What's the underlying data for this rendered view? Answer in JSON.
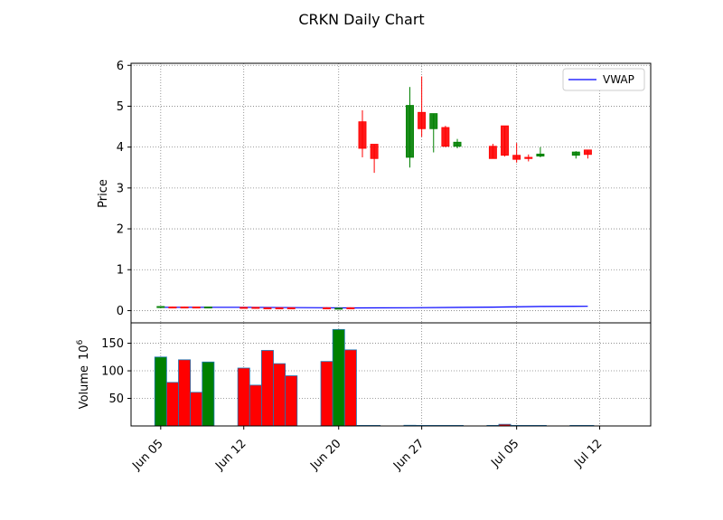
{
  "chart_data": {
    "type": "candlestick",
    "title": "CRKN Daily Chart",
    "price_panel": {
      "ylabel": "Price",
      "ylim": [
        -0.3,
        6.05
      ],
      "yticks": [
        0,
        1,
        2,
        3,
        4,
        5,
        6
      ],
      "legend": {
        "label": "VWAP",
        "placement": "top-right"
      },
      "grid": true
    },
    "volume_panel": {
      "ylabel": "Volume",
      "scale_label": "10",
      "scale_exponent": "6",
      "ylim": [
        0,
        187
      ],
      "yticks": [
        50,
        100,
        150
      ],
      "grid": true
    },
    "x_ticks": [
      {
        "label": "Jun 05",
        "day": 5
      },
      {
        "label": "Jun 12",
        "day": 12
      },
      {
        "label": "Jun 20",
        "day": 20
      },
      {
        "label": "Jun 27",
        "day": 27
      },
      {
        "label": "Jul 05",
        "day": 35
      },
      {
        "label": "Jul 12",
        "day": 42
      }
    ],
    "x_range": [
      2.5,
      46.3
    ],
    "colors": {
      "up": "#008000",
      "down": "#ff0000",
      "vwap": "#0000ff",
      "grid": "#808080"
    },
    "candles": [
      {
        "day": 5,
        "open": 0.08,
        "high": 0.1,
        "low": 0.06,
        "close": 0.1,
        "volume": 125
      },
      {
        "day": 6,
        "open": 0.09,
        "high": 0.1,
        "low": 0.07,
        "close": 0.08,
        "volume": 79
      },
      {
        "day": 7,
        "open": 0.09,
        "high": 0.1,
        "low": 0.07,
        "close": 0.08,
        "volume": 120
      },
      {
        "day": 8,
        "open": 0.09,
        "high": 0.09,
        "low": 0.07,
        "close": 0.08,
        "volume": 61
      },
      {
        "day": 9,
        "open": 0.08,
        "high": 0.09,
        "low": 0.07,
        "close": 0.09,
        "volume": 116
      },
      {
        "day": 12,
        "open": 0.08,
        "high": 0.09,
        "low": 0.07,
        "close": 0.07,
        "volume": 105
      },
      {
        "day": 13,
        "open": 0.08,
        "high": 0.08,
        "low": 0.05,
        "close": 0.06,
        "volume": 74
      },
      {
        "day": 14,
        "open": 0.07,
        "high": 0.08,
        "low": 0.05,
        "close": 0.06,
        "volume": 137
      },
      {
        "day": 15,
        "open": 0.07,
        "high": 0.08,
        "low": 0.05,
        "close": 0.06,
        "volume": 113
      },
      {
        "day": 16,
        "open": 0.07,
        "high": 0.08,
        "low": 0.05,
        "close": 0.06,
        "volume": 91
      },
      {
        "day": 19,
        "open": 0.07,
        "high": 0.08,
        "low": 0.04,
        "close": 0.05,
        "volume": 117
      },
      {
        "day": 20,
        "open": 0.05,
        "high": 0.07,
        "low": 0.04,
        "close": 0.06,
        "volume": 175
      },
      {
        "day": 21,
        "open": 0.07,
        "high": 0.08,
        "low": 0.04,
        "close": 0.05,
        "volume": 138
      },
      {
        "day": 22,
        "open": 4.62,
        "high": 4.9,
        "low": 3.75,
        "close": 3.97,
        "volume": 0.3
      },
      {
        "day": 23,
        "open": 4.07,
        "high": 4.07,
        "low": 3.37,
        "close": 3.72,
        "volume": 0.2
      },
      {
        "day": 26,
        "open": 3.75,
        "high": 5.47,
        "low": 3.5,
        "close": 5.02,
        "volume": 1.2
      },
      {
        "day": 27,
        "open": 4.85,
        "high": 5.73,
        "low": 4.25,
        "close": 4.45,
        "volume": 0.4
      },
      {
        "day": 28,
        "open": 4.45,
        "high": 4.82,
        "low": 3.87,
        "close": 4.82,
        "volume": 0.3
      },
      {
        "day": 29,
        "open": 4.48,
        "high": 4.52,
        "low": 4.0,
        "close": 4.02,
        "volume": 0.2
      },
      {
        "day": 30,
        "open": 4.02,
        "high": 4.2,
        "low": 3.97,
        "close": 4.12,
        "volume": 0.2
      },
      {
        "day": 33,
        "open": 4.02,
        "high": 4.08,
        "low": 3.72,
        "close": 3.72,
        "volume": 0.3
      },
      {
        "day": 34,
        "open": 4.52,
        "high": 4.52,
        "low": 3.77,
        "close": 3.8,
        "volume": 3
      },
      {
        "day": 35,
        "open": 3.8,
        "high": 4.1,
        "low": 3.62,
        "close": 3.7,
        "volume": 0.3
      },
      {
        "day": 36,
        "open": 3.75,
        "high": 3.82,
        "low": 3.65,
        "close": 3.72,
        "volume": 0.2
      },
      {
        "day": 37,
        "open": 3.78,
        "high": 4.0,
        "low": 3.75,
        "close": 3.83,
        "volume": 0.2
      },
      {
        "day": 40,
        "open": 3.8,
        "high": 3.9,
        "low": 3.72,
        "close": 3.88,
        "volume": 0.2
      },
      {
        "day": 41,
        "open": 3.93,
        "high": 3.93,
        "low": 3.72,
        "close": 3.82,
        "volume": 0.3
      }
    ],
    "vwap": [
      {
        "day": 5,
        "value": 0.08
      },
      {
        "day": 12,
        "value": 0.08
      },
      {
        "day": 19,
        "value": 0.07
      },
      {
        "day": 21,
        "value": 0.065
      },
      {
        "day": 26,
        "value": 0.07
      },
      {
        "day": 33,
        "value": 0.085
      },
      {
        "day": 37,
        "value": 0.1
      },
      {
        "day": 41,
        "value": 0.105
      }
    ]
  }
}
